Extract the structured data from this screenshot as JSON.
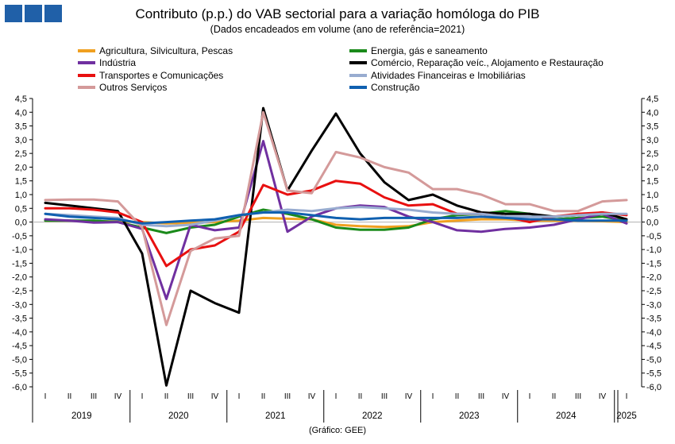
{
  "header": {
    "title": "Contributo (p.p.) do VAB sectorial para a variação homóloga do PIB",
    "subtitle": "(Dados encadeados em volume (ano de referência=2021)",
    "source": "(Gráfico: GEE)"
  },
  "colors": {
    "logo": "#2060a8",
    "zero_line": "#b0b0b0",
    "axis": "#000000"
  },
  "chart_data": {
    "type": "line",
    "title": "Contributo (p.p.) do VAB sectorial para a variação homóloga do PIB",
    "subtitle": "(Dados encadeados em volume (ano de referência=2021)",
    "ylim": [
      -6.0,
      4.5
    ],
    "ytick_step": 0.5,
    "yticks": [
      "4,5",
      "4,0",
      "3,5",
      "3,0",
      "2,5",
      "2,0",
      "1,5",
      "1,0",
      "0,5",
      "0,0",
      "-0,5",
      "-1,0",
      "-1,5",
      "-2,0",
      "-2,5",
      "-3,0",
      "-3,5",
      "-4,0",
      "-4,5",
      "-5,0",
      "-5,5",
      "-6,0"
    ],
    "grid": false,
    "legend_position": "top",
    "x": [
      "I",
      "II",
      "III",
      "IV",
      "I",
      "II",
      "III",
      "IV",
      "I",
      "II",
      "III",
      "IV",
      "I",
      "II",
      "III",
      "IV",
      "I",
      "II",
      "III",
      "IV",
      "I",
      "II",
      "III",
      "IV",
      "I"
    ],
    "years": [
      {
        "label": "2019",
        "start": 0,
        "count": 4
      },
      {
        "label": "2020",
        "start": 4,
        "count": 4
      },
      {
        "label": "2021",
        "start": 8,
        "count": 4
      },
      {
        "label": "2022",
        "start": 12,
        "count": 4
      },
      {
        "label": "2023",
        "start": 16,
        "count": 4
      },
      {
        "label": "2024",
        "start": 20,
        "count": 4
      },
      {
        "label": "2025",
        "start": 24,
        "count": 1
      }
    ],
    "series": [
      {
        "name": "Agricultura, Silvicultura, Pescas",
        "color": "#f0a020",
        "values": [
          0.05,
          0.05,
          0.03,
          0.02,
          0.0,
          -0.05,
          -0.03,
          0.0,
          0.05,
          0.15,
          0.12,
          0.1,
          -0.1,
          -0.15,
          -0.18,
          -0.15,
          0.0,
          0.05,
          0.1,
          0.1,
          0.05,
          0.05,
          0.05,
          0.03,
          0.0
        ]
      },
      {
        "name": "Energia, gás e saneamento",
        "color": "#1a8a1a",
        "values": [
          0.05,
          0.05,
          0.05,
          0.0,
          -0.2,
          -0.4,
          -0.2,
          -0.1,
          0.2,
          0.45,
          0.3,
          0.1,
          -0.2,
          -0.28,
          -0.28,
          -0.2,
          0.1,
          0.25,
          0.3,
          0.4,
          0.3,
          0.1,
          0.15,
          0.2,
          0.05
        ]
      },
      {
        "name": "Indústria",
        "color": "#7030a0",
        "values": [
          0.1,
          0.05,
          -0.02,
          0.0,
          -0.25,
          -2.8,
          -0.1,
          -0.3,
          -0.2,
          2.95,
          -0.35,
          0.2,
          0.5,
          0.6,
          0.55,
          0.2,
          0.0,
          -0.3,
          -0.35,
          -0.25,
          -0.2,
          -0.1,
          0.1,
          0.3,
          -0.05
        ]
      },
      {
        "name": "Comércio, Reparação veíc., Alojamento e Restauração",
        "color": "#000000",
        "values": [
          0.7,
          0.6,
          0.5,
          0.4,
          -1.15,
          -5.95,
          -2.5,
          -2.95,
          -3.3,
          4.15,
          1.15,
          2.6,
          3.95,
          2.5,
          1.45,
          0.8,
          1.0,
          0.6,
          0.35,
          0.3,
          0.3,
          0.2,
          0.25,
          0.35,
          0.1
        ]
      },
      {
        "name": "Transportes e Comunicações",
        "color": "#e81010",
        "values": [
          0.5,
          0.5,
          0.45,
          0.35,
          0.0,
          -1.6,
          -1.0,
          -0.85,
          -0.35,
          1.35,
          1.0,
          1.15,
          1.5,
          1.4,
          0.9,
          0.6,
          0.65,
          0.3,
          0.3,
          0.2,
          0.0,
          0.2,
          0.3,
          0.35,
          0.25
        ]
      },
      {
        "name": "Atividades Financeiras e Imobiliárias",
        "color": "#98acd0",
        "values": [
          0.3,
          0.25,
          0.2,
          0.15,
          -0.1,
          -0.15,
          -0.1,
          0.05,
          0.25,
          0.35,
          0.45,
          0.4,
          0.5,
          0.55,
          0.5,
          0.45,
          0.35,
          0.3,
          0.3,
          0.2,
          0.2,
          0.2,
          0.25,
          0.3,
          0.3
        ]
      },
      {
        "name": "Outros Serviços",
        "color": "#d49a9a",
        "values": [
          0.8,
          0.82,
          0.82,
          0.75,
          -0.2,
          -3.75,
          -1.05,
          -0.6,
          -0.5,
          4.0,
          1.15,
          1.05,
          2.55,
          2.35,
          2.0,
          1.8,
          1.2,
          1.2,
          1.0,
          0.65,
          0.65,
          0.4,
          0.4,
          0.75,
          0.8
        ]
      },
      {
        "name": "Construção",
        "color": "#1060b0",
        "values": [
          0.3,
          0.2,
          0.15,
          0.1,
          -0.05,
          0.0,
          0.05,
          0.1,
          0.25,
          0.35,
          0.35,
          0.25,
          0.15,
          0.1,
          0.15,
          0.15,
          0.15,
          0.15,
          0.2,
          0.15,
          0.1,
          0.1,
          0.05,
          0.05,
          0.05
        ]
      }
    ]
  }
}
